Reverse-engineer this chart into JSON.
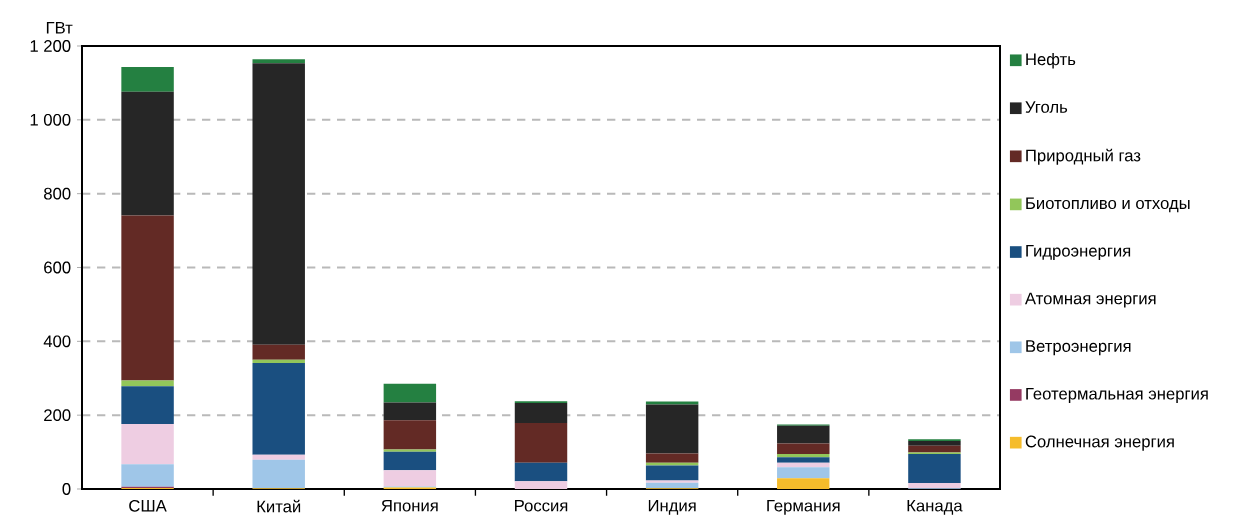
{
  "chart_data": {
    "type": "bar",
    "stacked": true,
    "ylabel": "ГВт",
    "categories": [
      "США",
      "Китай",
      "Япония",
      "Россия",
      "Индия",
      "Германия",
      "Канада"
    ],
    "series": [
      {
        "name": "Солнечная энергия",
        "color": "#f5bc2b",
        "values": [
          3,
          2,
          4,
          null,
          2,
          29,
          null
        ]
      },
      {
        "name": "Геотермальная энергия",
        "color": "#953a62",
        "values": [
          3,
          0,
          null,
          0,
          0,
          0,
          0
        ]
      },
      {
        "name": "Ветроэнергия",
        "color": "#9fc6e8",
        "values": [
          61,
          77,
          3,
          0,
          15,
          30,
          2
        ]
      },
      {
        "name": "Атомная энергия",
        "color": "#eecde2",
        "values": [
          109,
          14,
          44,
          21,
          6,
          12,
          14
        ]
      },
      {
        "name": "Гидроэнергия",
        "color": "#1a4f80",
        "values": [
          102,
          248,
          50,
          50,
          41,
          15,
          79
        ]
      },
      {
        "name": "Биотопливо и отходы",
        "color": "#92c65a",
        "values": [
          16,
          9,
          6,
          0,
          7,
          9,
          4
        ]
      },
      {
        "name": "Природный газ",
        "color": "#632a25",
        "values": [
          447,
          41,
          79,
          108,
          25,
          28,
          18
        ]
      },
      {
        "name": "Уголь",
        "color": "#262626",
        "values": [
          335,
          762,
          48,
          54,
          133,
          48,
          13
        ]
      },
      {
        "name": "Нефть",
        "color": "#248041",
        "values": [
          67,
          11,
          51,
          5,
          8,
          4,
          5
        ]
      }
    ],
    "ylim": [
      0,
      1200
    ],
    "yticks": [
      0,
      200,
      400,
      600,
      800,
      {
        "value": 1000,
        "label": "1 000"
      },
      {
        "value": 1200,
        "label": "1 200"
      }
    ],
    "grid": "y",
    "legend": "right"
  }
}
